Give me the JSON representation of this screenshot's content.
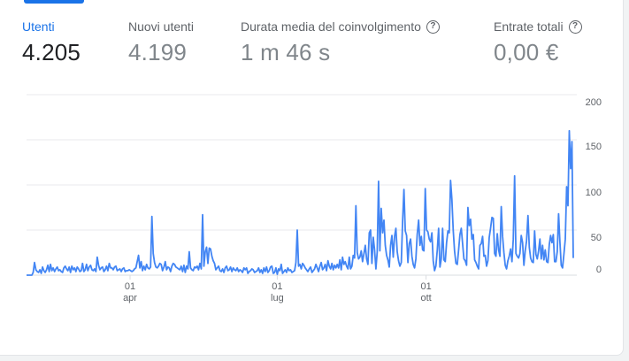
{
  "metrics": [
    {
      "label": "Utenti",
      "value": "4.205",
      "active": true,
      "help": false
    },
    {
      "label": "Nuovi utenti",
      "value": "4.199",
      "active": false,
      "help": false
    },
    {
      "label": "Durata media del coinvolgimento",
      "value": "1 m 46 s",
      "active": false,
      "help": true
    },
    {
      "label": "Entrate totali",
      "value": "0,00 €",
      "active": false,
      "help": true
    }
  ],
  "colors": {
    "accent": "#1a73e8",
    "line": "#4285f4",
    "grid": "#e8eaed"
  },
  "chart_data": {
    "type": "line",
    "title": "",
    "xlabel": "",
    "ylabel": "",
    "ylim": [
      0,
      200
    ],
    "yticks": [
      0,
      50,
      100,
      150,
      200
    ],
    "ytick_labels": [
      "0",
      "50",
      "100",
      "150",
      "200"
    ],
    "xticks": [
      {
        "day": "01",
        "month": "apr",
        "x": "2023-04-01"
      },
      {
        "day": "01",
        "month": "lug",
        "x": "2023-07-01"
      },
      {
        "day": "01",
        "month": "ott",
        "x": "2023-10-01"
      }
    ],
    "x_start": "2023-01-27",
    "x_end": "2023-12-31",
    "grid": true,
    "series": [
      {
        "values": [
          0,
          0,
          0,
          0,
          0,
          3,
          14,
          6,
          4,
          3,
          6,
          2,
          9,
          5,
          3,
          6,
          11,
          4,
          12,
          5,
          8,
          4,
          7,
          9,
          5,
          6,
          4,
          3,
          8,
          10,
          7,
          5,
          9,
          3,
          10,
          6,
          8,
          4,
          9,
          7,
          4,
          5,
          13,
          4,
          6,
          12,
          5,
          9,
          11,
          6,
          5,
          7,
          4,
          20,
          11,
          6,
          8,
          9,
          4,
          6,
          10,
          5,
          13,
          8,
          8,
          6,
          9,
          10,
          5,
          6,
          7,
          4,
          7,
          8,
          4,
          5,
          5,
          6,
          5,
          4,
          5,
          7,
          8,
          15,
          22,
          8,
          15,
          5,
          10,
          6,
          12,
          8,
          7,
          9,
          65,
          24,
          14,
          9,
          8,
          10,
          13,
          12,
          5,
          9,
          15,
          6,
          9,
          8,
          4,
          10,
          13,
          12,
          9,
          8,
          7,
          6,
          10,
          4,
          11,
          3,
          10,
          7,
          26,
          8,
          6,
          5,
          9,
          8,
          10,
          6,
          13,
          7,
          67,
          10,
          26,
          31,
          13,
          30,
          29,
          21,
          16,
          13,
          6,
          8,
          10,
          5,
          4,
          7,
          3,
          8,
          10,
          5,
          6,
          9,
          4,
          8,
          6,
          5,
          8,
          4,
          6,
          5,
          3,
          8,
          6,
          8,
          2,
          4,
          5,
          7,
          6,
          3,
          4,
          5,
          8,
          3,
          6,
          2,
          8,
          4,
          9,
          3,
          5,
          9,
          10,
          2,
          3,
          8,
          1,
          7,
          5,
          12,
          2,
          4,
          6,
          3,
          8,
          5,
          6,
          3,
          4,
          5,
          14,
          50,
          10,
          12,
          7,
          13,
          11,
          8,
          6,
          4,
          7,
          9,
          3,
          5,
          7,
          12,
          8,
          4,
          10,
          14,
          6,
          8,
          12,
          5,
          16,
          10,
          7,
          13,
          6,
          11,
          8,
          12,
          8,
          17,
          6,
          20,
          12,
          15,
          10,
          7,
          20,
          7,
          10,
          22,
          19,
          77,
          25,
          18,
          20,
          27,
          15,
          24,
          33,
          18,
          12,
          47,
          50,
          13,
          42,
          28,
          7,
          26,
          104,
          27,
          74,
          47,
          61,
          33,
          22,
          17,
          9,
          33,
          44,
          20,
          43,
          52,
          26,
          16,
          10,
          14,
          60,
          95,
          49,
          44,
          14,
          35,
          40,
          21,
          12,
          8,
          18,
          45,
          61,
          33,
          43,
          28,
          27,
          96,
          50,
          48,
          40,
          37,
          47,
          16,
          5,
          10,
          28,
          52,
          9,
          18,
          52,
          17,
          15,
          36,
          49,
          47,
          105,
          84,
          50,
          27,
          13,
          12,
          28,
          45,
          52,
          35,
          18,
          16,
          11,
          75,
          55,
          62,
          40,
          45,
          17,
          14,
          10,
          7,
          33,
          35,
          43,
          21,
          22,
          10,
          16,
          42,
          52,
          64,
          63,
          24,
          21,
          46,
          28,
          21,
          76,
          43,
          25,
          11,
          7,
          16,
          21,
          29,
          15,
          40,
          110,
          24,
          21,
          19,
          24,
          44,
          36,
          11,
          27,
          38,
          66,
          31,
          19,
          15,
          14,
          49,
          23,
          18,
          27,
          40,
          18,
          33,
          17,
          28,
          15,
          14,
          34,
          44,
          36,
          45,
          15,
          15,
          26,
          68,
          37,
          11,
          8,
          23,
          40,
          98,
          77,
          160,
          118,
          148,
          19
        ]
      }
    ]
  }
}
